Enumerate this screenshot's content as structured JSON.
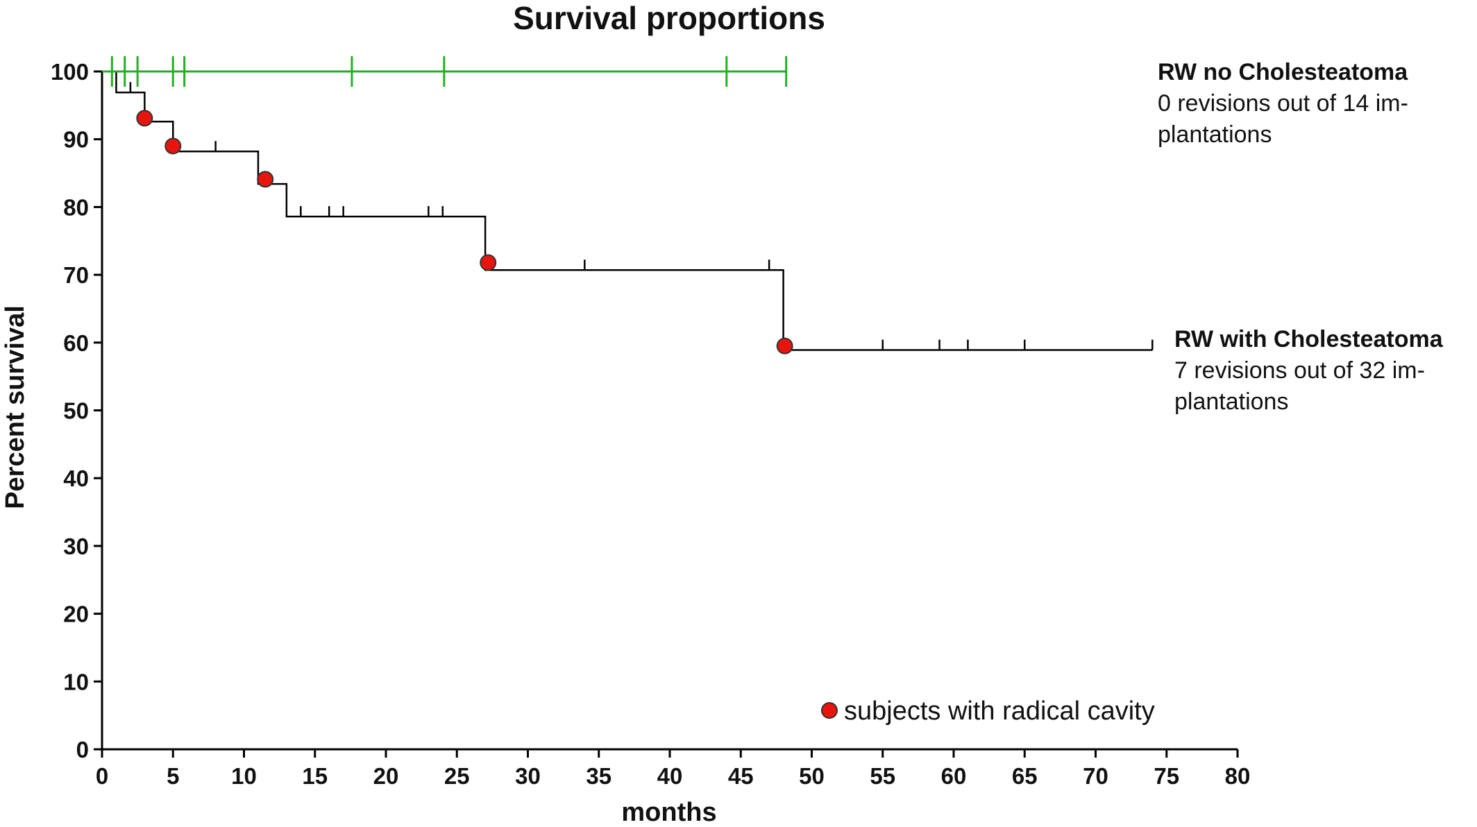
{
  "chart_data": {
    "type": "line",
    "subtype": "kaplan-meier step",
    "title": "Survival proportions",
    "xlabel": "months",
    "ylabel": "Percent survival",
    "xlim": [
      0,
      80
    ],
    "ylim": [
      0,
      100
    ],
    "xticks": [
      0,
      5,
      10,
      15,
      20,
      25,
      30,
      35,
      40,
      45,
      50,
      55,
      60,
      65,
      70,
      75,
      80
    ],
    "yticks": [
      0,
      10,
      20,
      30,
      40,
      50,
      60,
      70,
      80,
      90,
      100
    ],
    "grid": false,
    "series": [
      {
        "name": "RW no Cholesteatoma",
        "note": "0 revisions out of 14 implantations",
        "note_lines": [
          "0 revisions out of 14 im-",
          "plantations"
        ],
        "color": "#22b022",
        "steps": [
          [
            0,
            100
          ],
          [
            48.2,
            100
          ]
        ],
        "censored": [
          0.7,
          1.6,
          2.5,
          5.0,
          5.8,
          17.6,
          24.1,
          44.0,
          48.2
        ],
        "events": []
      },
      {
        "name": "RW with Cholesteatoma",
        "note": "7 revisions out of 32 implantations",
        "note_lines": [
          "7 revisions out of 32 im-",
          "plantations"
        ],
        "color": "#000000",
        "steps": [
          [
            0,
            100
          ],
          [
            1.0,
            96.9
          ],
          [
            3.0,
            92.6
          ],
          [
            5.0,
            88.2
          ],
          [
            11.0,
            83.4
          ],
          [
            13.0,
            78.6
          ],
          [
            27.0,
            70.7
          ],
          [
            48.0,
            58.9
          ],
          [
            74.0,
            58.9
          ]
        ],
        "censored": [
          2.0,
          8.0,
          14.0,
          16.0,
          17.0,
          23.0,
          24.0,
          34.0,
          47.0,
          55.0,
          59.0,
          61.0,
          65.0,
          74.0
        ],
        "events": []
      }
    ],
    "markers": {
      "label": "subjects with radical cavity",
      "color": "#e8140e",
      "points": [
        [
          3.0,
          93.1
        ],
        [
          5.0,
          89.0
        ],
        [
          11.5,
          84.1
        ],
        [
          27.2,
          71.8
        ],
        [
          48.1,
          59.5
        ]
      ]
    }
  }
}
